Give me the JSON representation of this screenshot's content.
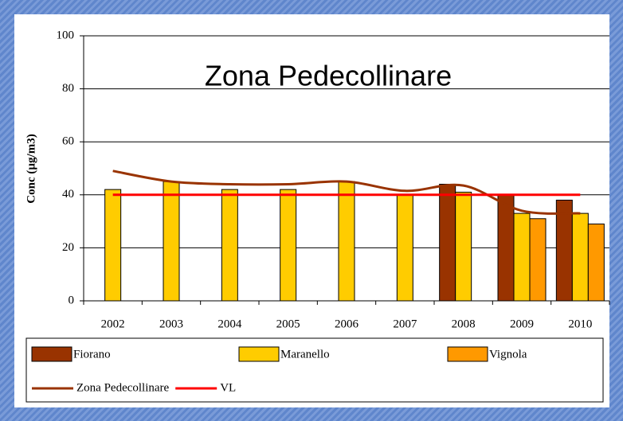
{
  "chart_data": {
    "type": "bar",
    "title": "Zona Pedecollinare",
    "y_label": "Conc (µg/m3)",
    "categories": [
      "2002",
      "2003",
      "2004",
      "2005",
      "2006",
      "2007",
      "2008",
      "2009",
      "2010"
    ],
    "series": [
      {
        "name": "Fiorano",
        "type": "bar",
        "color": "#993300",
        "values": [
          null,
          null,
          null,
          null,
          null,
          null,
          44,
          40,
          38
        ]
      },
      {
        "name": "Maranello",
        "type": "bar",
        "color": "#ffcc00",
        "values": [
          42,
          45,
          42,
          42,
          45,
          40,
          41,
          33,
          33
        ]
      },
      {
        "name": "Vignola",
        "type": "bar",
        "color": "#ff9900",
        "values": [
          null,
          null,
          null,
          null,
          null,
          null,
          null,
          31,
          29
        ]
      },
      {
        "name": "Zona Pedecollinare",
        "type": "line",
        "smooth": true,
        "color": "#993300",
        "values": [
          49,
          45,
          44,
          44,
          45,
          41.5,
          43.5,
          34,
          33
        ]
      },
      {
        "name": "VL",
        "type": "line",
        "smooth": false,
        "color": "#ff0000",
        "values": [
          40,
          40,
          40,
          40,
          40,
          40,
          40,
          40,
          40
        ]
      }
    ],
    "ylim": [
      0,
      100
    ],
    "yticks": [
      0,
      20,
      40,
      60,
      80,
      100
    ],
    "grid": true,
    "legend": "bottom"
  }
}
